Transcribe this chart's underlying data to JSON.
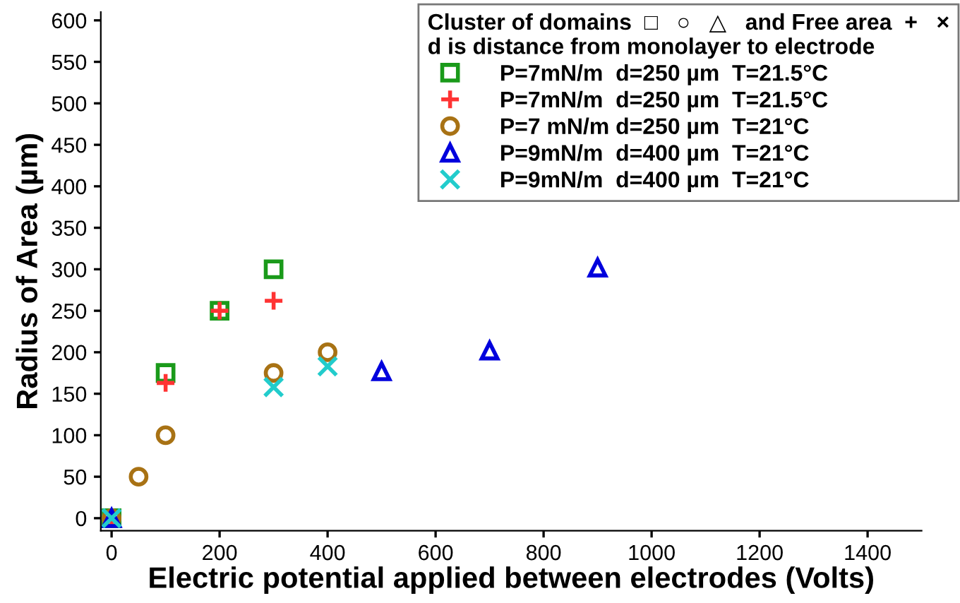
{
  "chart_data": {
    "type": "scatter",
    "xlabel": "Electric potential applied between electrodes (Volts)",
    "ylabel": "Radius of Area (µm)",
    "legend_title": "Cluster of domains  □   ○   △   and Free area  +   ×\nd is distance from monolayer to electrode",
    "series": [
      {
        "name": "P=7mN/m  d=250 µm  T=21.5°C",
        "color": "#1a9a1a",
        "marker": "square",
        "x": [
          0,
          100,
          200,
          300
        ],
        "values": [
          0,
          175,
          250,
          300
        ]
      },
      {
        "name": "P=7mN/m  d=250 µm  T=21.5°C",
        "color": "#ff3333",
        "marker": "plus",
        "x": [
          0,
          100,
          200,
          300
        ],
        "values": [
          0,
          163,
          250,
          262
        ]
      },
      {
        "name": "P=7 mN/m d=250 µm  T=21°C",
        "color": "#a87214",
        "marker": "circle",
        "x": [
          0,
          50,
          100,
          300,
          400
        ],
        "values": [
          0,
          50,
          100,
          175,
          200
        ]
      },
      {
        "name": "P=9mN/m  d=400 µm  T=21°C",
        "color": "#0000dd",
        "marker": "triangle",
        "x": [
          0,
          500,
          700,
          900
        ],
        "values": [
          0,
          177,
          202,
          302
        ]
      },
      {
        "name": "P=9mN/m  d=400 µm  T=21°C",
        "color": "#22cccc",
        "marker": "cross",
        "x": [
          0,
          300,
          400
        ],
        "values": [
          0,
          158,
          183
        ]
      }
    ],
    "xlim": [
      -20,
      1500
    ],
    "xticks": [
      0,
      200,
      400,
      600,
      800,
      1000,
      1200,
      1400
    ],
    "ylim": [
      -15,
      610
    ],
    "yticks": [
      0,
      50,
      100,
      150,
      200,
      250,
      300,
      350,
      400,
      450,
      500,
      550,
      600
    ],
    "grid": false,
    "legend": "top right"
  }
}
